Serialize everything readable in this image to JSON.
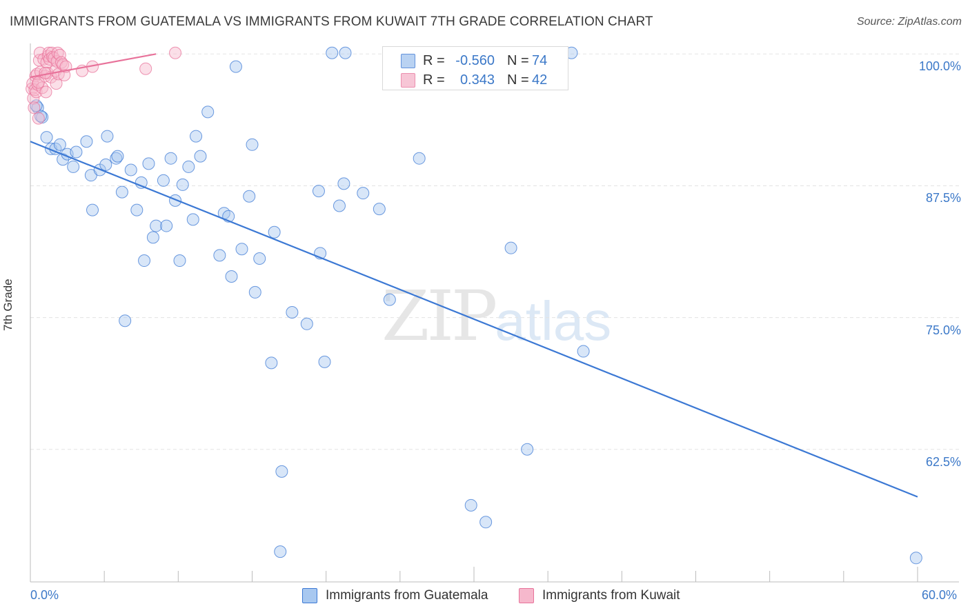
{
  "header": {
    "title": "IMMIGRANTS FROM GUATEMALA VS IMMIGRANTS FROM KUWAIT 7TH GRADE CORRELATION CHART",
    "source": "Source: ZipAtlas.com"
  },
  "watermark": {
    "zip": "ZIP",
    "atlas": "atlas"
  },
  "legend_stats": {
    "rows": [
      {
        "r_label": "R =",
        "r_value": "-0.560",
        "n_label": "N =",
        "n_value": "74",
        "color": "#a8c8f0"
      },
      {
        "r_label": "R =",
        "r_value": "0.343",
        "n_label": "N =",
        "n_value": "42",
        "color": "#f6b8cc"
      }
    ]
  },
  "chart_data": {
    "type": "scatter",
    "ylabel": "7th Grade",
    "xlim": [
      0,
      60
    ],
    "ylim": [
      51.5,
      101
    ],
    "x_tick_labels": {
      "min": "0.0%",
      "max": "60.0%"
    },
    "y_ticks": [
      {
        "value": 100,
        "label": "100.0%"
      },
      {
        "value": 87.5,
        "label": "87.5%"
      },
      {
        "value": 75,
        "label": "75.0%"
      },
      {
        "value": 62.5,
        "label": "62.5%"
      }
    ],
    "grid": true,
    "legend_position": "bottom",
    "series": [
      {
        "name": "Immigrants from Guatemala",
        "color": "#3b78d4",
        "fill": "#a8c8f0",
        "trend": {
          "x0": 0,
          "y0": 91.7,
          "x1": 60,
          "y1": 58.0
        },
        "points": [
          [
            0.5,
            94.9
          ],
          [
            0.8,
            94.0
          ],
          [
            1.1,
            92.1
          ],
          [
            1.4,
            91.0
          ],
          [
            1.7,
            91.0
          ],
          [
            2.0,
            91.4
          ],
          [
            2.2,
            90.0
          ],
          [
            2.5,
            90.5
          ],
          [
            2.9,
            89.3
          ],
          [
            3.1,
            90.7
          ],
          [
            3.8,
            91.7
          ],
          [
            4.1,
            88.5
          ],
          [
            4.2,
            85.2
          ],
          [
            4.7,
            89.0
          ],
          [
            5.1,
            89.5
          ],
          [
            5.2,
            92.2
          ],
          [
            5.8,
            90.1
          ],
          [
            5.9,
            90.3
          ],
          [
            6.2,
            86.9
          ],
          [
            6.4,
            74.7
          ],
          [
            6.8,
            89.0
          ],
          [
            7.2,
            85.2
          ],
          [
            7.5,
            87.8
          ],
          [
            7.7,
            80.4
          ],
          [
            8.0,
            89.6
          ],
          [
            8.3,
            82.6
          ],
          [
            8.5,
            83.7
          ],
          [
            9.0,
            88.0
          ],
          [
            9.2,
            83.7
          ],
          [
            9.5,
            90.1
          ],
          [
            9.8,
            86.1
          ],
          [
            10.1,
            80.4
          ],
          [
            10.3,
            87.6
          ],
          [
            10.7,
            89.3
          ],
          [
            11.0,
            84.3
          ],
          [
            11.2,
            92.2
          ],
          [
            11.5,
            90.3
          ],
          [
            12.0,
            94.5
          ],
          [
            12.8,
            80.9
          ],
          [
            13.1,
            84.9
          ],
          [
            13.4,
            84.6
          ],
          [
            13.6,
            78.9
          ],
          [
            13.9,
            98.8
          ],
          [
            14.3,
            81.5
          ],
          [
            14.8,
            86.5
          ],
          [
            15.0,
            91.4
          ],
          [
            15.2,
            77.4
          ],
          [
            15.5,
            80.6
          ],
          [
            16.3,
            70.7
          ],
          [
            16.5,
            83.1
          ],
          [
            17.0,
            60.4
          ],
          [
            17.7,
            75.5
          ],
          [
            18.7,
            74.4
          ],
          [
            19.5,
            87.0
          ],
          [
            19.6,
            81.1
          ],
          [
            19.9,
            70.8
          ],
          [
            20.4,
            100.1
          ],
          [
            20.9,
            85.6
          ],
          [
            21.2,
            87.7
          ],
          [
            21.3,
            100.1
          ],
          [
            22.5,
            86.8
          ],
          [
            23.6,
            85.3
          ],
          [
            24.3,
            76.7
          ],
          [
            26.3,
            90.1
          ],
          [
            29.8,
            57.2
          ],
          [
            30.8,
            55.6
          ],
          [
            32.5,
            81.6
          ],
          [
            33.6,
            62.5
          ],
          [
            36.6,
            100.1
          ],
          [
            37.4,
            71.8
          ],
          [
            16.9,
            52.8
          ],
          [
            59.9,
            52.2
          ],
          [
            0.7,
            94.1
          ],
          [
            0.4,
            95.1
          ]
        ]
      },
      {
        "name": "Immigrants from Kuwait",
        "color": "#e8729a",
        "fill": "#f6b8cc",
        "trend": {
          "x0": 0,
          "y0": 97.8,
          "x1": 8.5,
          "y1": 100.0
        },
        "points": [
          [
            0.1,
            96.7
          ],
          [
            0.15,
            97.2
          ],
          [
            0.2,
            95.8
          ],
          [
            0.25,
            94.9
          ],
          [
            0.3,
            96.6
          ],
          [
            0.35,
            97.9
          ],
          [
            0.4,
            96.4
          ],
          [
            0.45,
            98.1
          ],
          [
            0.5,
            97.1
          ],
          [
            0.55,
            93.9
          ],
          [
            0.6,
            99.4
          ],
          [
            0.65,
            100.1
          ],
          [
            0.7,
            98.3
          ],
          [
            0.8,
            96.8
          ],
          [
            0.9,
            99.5
          ],
          [
            1.0,
            97.9
          ],
          [
            1.05,
            96.4
          ],
          [
            1.1,
            99.2
          ],
          [
            1.15,
            98.2
          ],
          [
            1.2,
            99.8
          ],
          [
            1.25,
            100.1
          ],
          [
            1.3,
            99.5
          ],
          [
            1.4,
            97.8
          ],
          [
            1.45,
            100.1
          ],
          [
            1.5,
            99.7
          ],
          [
            1.6,
            99.6
          ],
          [
            1.7,
            98.4
          ],
          [
            1.75,
            97.2
          ],
          [
            1.8,
            99.3
          ],
          [
            1.85,
            100.1
          ],
          [
            1.9,
            98.1
          ],
          [
            2.0,
            99.9
          ],
          [
            2.1,
            99.2
          ],
          [
            2.2,
            99.0
          ],
          [
            2.3,
            98.0
          ],
          [
            2.4,
            98.8
          ],
          [
            3.5,
            98.4
          ],
          [
            4.2,
            98.8
          ],
          [
            7.8,
            98.6
          ],
          [
            9.8,
            100.1
          ],
          [
            0.55,
            97.3
          ],
          [
            1.0,
            98.2
          ]
        ]
      }
    ]
  }
}
